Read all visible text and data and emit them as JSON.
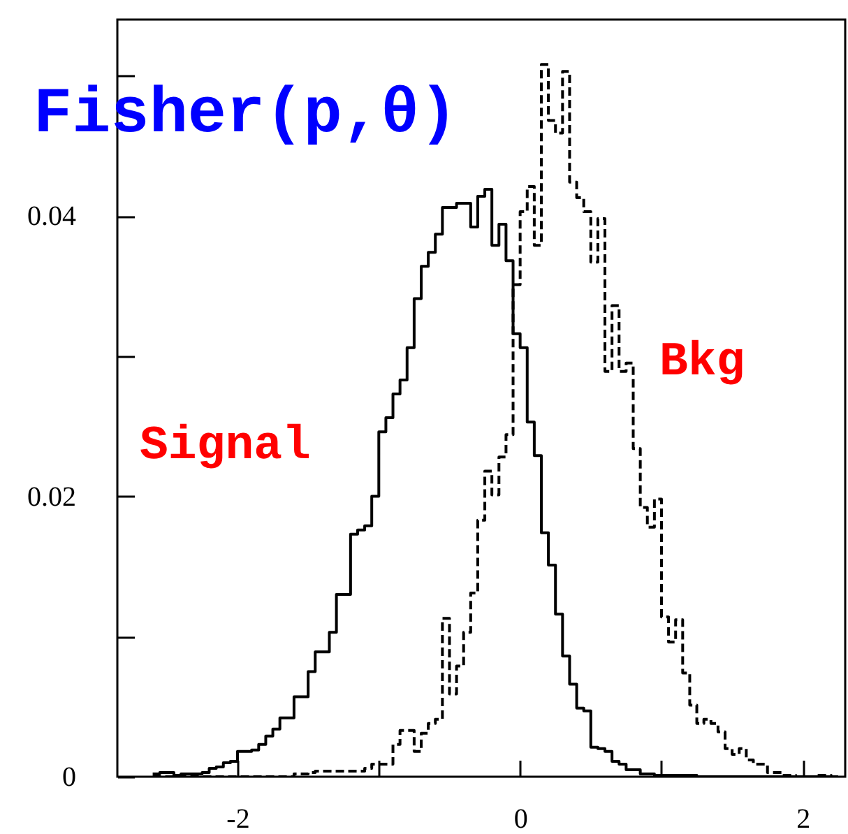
{
  "chart_data": {
    "type": "histogram",
    "title": "Fisher(p,θ)",
    "bins": [
      -2.6,
      -2.55,
      -2.5,
      -2.45,
      -2.4,
      -2.35,
      -2.3,
      -2.25,
      -2.2,
      -2.15,
      -2.1,
      -2.05,
      -2.0,
      -1.95,
      -1.9,
      -1.85,
      -1.8,
      -1.75,
      -1.7,
      -1.65,
      -1.6,
      -1.55,
      -1.5,
      -1.45,
      -1.4,
      -1.35,
      -1.3,
      -1.25,
      -1.2,
      -1.15,
      -1.1,
      -1.05,
      -1.0,
      -0.95,
      -0.9,
      -0.85,
      -0.8,
      -0.75,
      -0.7,
      -0.65,
      -0.6,
      -0.55,
      -0.5,
      -0.45,
      -0.4,
      -0.35,
      -0.3,
      -0.25,
      -0.2,
      -0.15,
      -0.1,
      -0.05,
      0.0,
      0.05,
      0.1,
      0.15,
      0.2,
      0.25,
      0.3,
      0.35,
      0.4,
      0.45,
      0.5,
      0.55,
      0.6,
      0.65,
      0.7,
      0.75,
      0.8,
      0.85,
      0.9,
      0.95,
      1.0,
      1.05,
      1.1,
      1.15,
      1.2,
      1.25,
      1.3,
      1.35,
      1.4,
      1.45,
      1.5,
      1.55,
      1.6,
      1.65,
      1.7,
      1.75,
      1.8,
      1.85,
      1.9,
      1.95,
      2.0,
      2.05,
      2.1,
      2.15,
      2.2,
      2.25
    ],
    "series": [
      {
        "name": "Signal",
        "color": "#000000",
        "line_style": "solid",
        "values": [
          0.0002,
          0.0003,
          0.0003,
          0.0001,
          0.0002,
          0.0002,
          0.0002,
          0.0003,
          0.0006,
          0.0007,
          0.001,
          0.0011,
          0.0018,
          0.0018,
          0.0019,
          0.0023,
          0.0029,
          0.0034,
          0.0042,
          0.0042,
          0.0057,
          0.0057,
          0.0075,
          0.0089,
          0.0089,
          0.0103,
          0.013,
          0.013,
          0.0173,
          0.0176,
          0.0179,
          0.02,
          0.0246,
          0.0256,
          0.0273,
          0.0283,
          0.0306,
          0.0341,
          0.0364,
          0.0374,
          0.0387,
          0.0406,
          0.0406,
          0.0409,
          0.0409,
          0.0392,
          0.0414,
          0.0419,
          0.0379,
          0.0394,
          0.0368,
          0.0316,
          0.0306,
          0.0253,
          0.0229,
          0.0174,
          0.0151,
          0.0116,
          0.0086,
          0.0066,
          0.0049,
          0.0047,
          0.0021,
          0.002,
          0.0018,
          0.0011,
          0.0009,
          0.0005,
          0.0005,
          0.0002,
          0.0002,
          0.0001,
          0.0001,
          0.0001,
          0.0001,
          0.0001,
          0.0001,
          0,
          0,
          0,
          0,
          0,
          0,
          0,
          0,
          0,
          0,
          0,
          0,
          0,
          0,
          0,
          0,
          0,
          0,
          0,
          0
        ]
      },
      {
        "name": "Bkg",
        "color": "#000000",
        "line_style": "dashed",
        "values": [
          0,
          0,
          0,
          0,
          0,
          0,
          0,
          0,
          0,
          0,
          0,
          0,
          0,
          0,
          0,
          0,
          0,
          0,
          0,
          0,
          0.0002,
          0.0002,
          0.0003,
          0.0004,
          0.0004,
          0.0004,
          0.0004,
          0.0004,
          0.0004,
          0.0004,
          0.0006,
          0.0009,
          0.0009,
          0.0009,
          0.0023,
          0.0033,
          0.0033,
          0.0018,
          0.0031,
          0.0038,
          0.0041,
          0.0113,
          0.0059,
          0.0079,
          0.0103,
          0.0131,
          0.0183,
          0.0218,
          0.0201,
          0.0228,
          0.0244,
          0.0351,
          0.0403,
          0.0421,
          0.0379,
          0.0508,
          0.0468,
          0.0459,
          0.0503,
          0.0424,
          0.0413,
          0.0403,
          0.0367,
          0.0398,
          0.0289,
          0.0336,
          0.0289,
          0.0295,
          0.0234,
          0.0192,
          0.0178,
          0.0198,
          0.0114,
          0.0096,
          0.0112,
          0.0074,
          0.0051,
          0.0038,
          0.0041,
          0.0038,
          0.0032,
          0.002,
          0.0016,
          0.002,
          0.0012,
          0.0009,
          0.0009,
          0.0003,
          0.0003,
          0.0001,
          0.0001,
          0,
          0,
          0,
          0.0001,
          0.0001,
          0
        ]
      }
    ],
    "xlim": [
      -2.85,
      2.3
    ],
    "xticks": [
      -2,
      {
        "value": -1,
        "label": null
      },
      0,
      {
        "value": 1,
        "label": null
      },
      2
    ],
    "ylim": [
      0,
      0.054
    ],
    "yticks": [
      0,
      {
        "value": 0.01,
        "label": null
      },
      0.02,
      {
        "value": 0.03,
        "label": null
      },
      0.04,
      {
        "value": 0.05,
        "label": null
      }
    ],
    "grid": false,
    "legend": false
  }
}
